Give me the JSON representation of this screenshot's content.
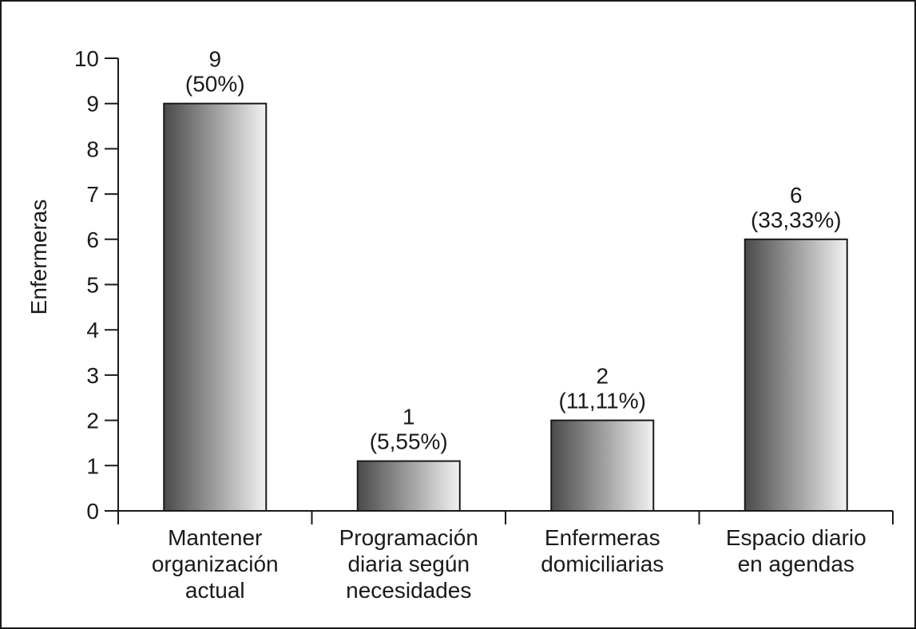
{
  "chart_data": {
    "type": "bar",
    "title": "",
    "xlabel": "",
    "ylabel": "Enfermeras",
    "ylim": [
      0,
      10
    ],
    "yticks": [
      "0",
      "1",
      "2",
      "3",
      "4",
      "5",
      "6",
      "7",
      "8",
      "9",
      "10"
    ],
    "grid": false,
    "legend": "none",
    "categories": [
      [
        "Mantener",
        "organización",
        "actual"
      ],
      [
        "Programación",
        "diaria según",
        "necesidades"
      ],
      [
        "Enfermeras",
        "domiciliarias"
      ],
      [
        "Espacio diario",
        "en agendas"
      ]
    ],
    "values": [
      9,
      1.1,
      2,
      6
    ],
    "data_labels": [
      {
        "count": "9",
        "percent": "(50%)"
      },
      {
        "count": "1",
        "percent": "(5,55%)"
      },
      {
        "count": "2",
        "percent": "(11,11%)"
      },
      {
        "count": "6",
        "percent": "(33,33%)"
      }
    ],
    "colors": {
      "bar_dark": "#4a4a4a",
      "bar_mid": "#a6a6a6",
      "bar_light": "#f2f2f2",
      "axis": "#1a1a1a"
    }
  }
}
